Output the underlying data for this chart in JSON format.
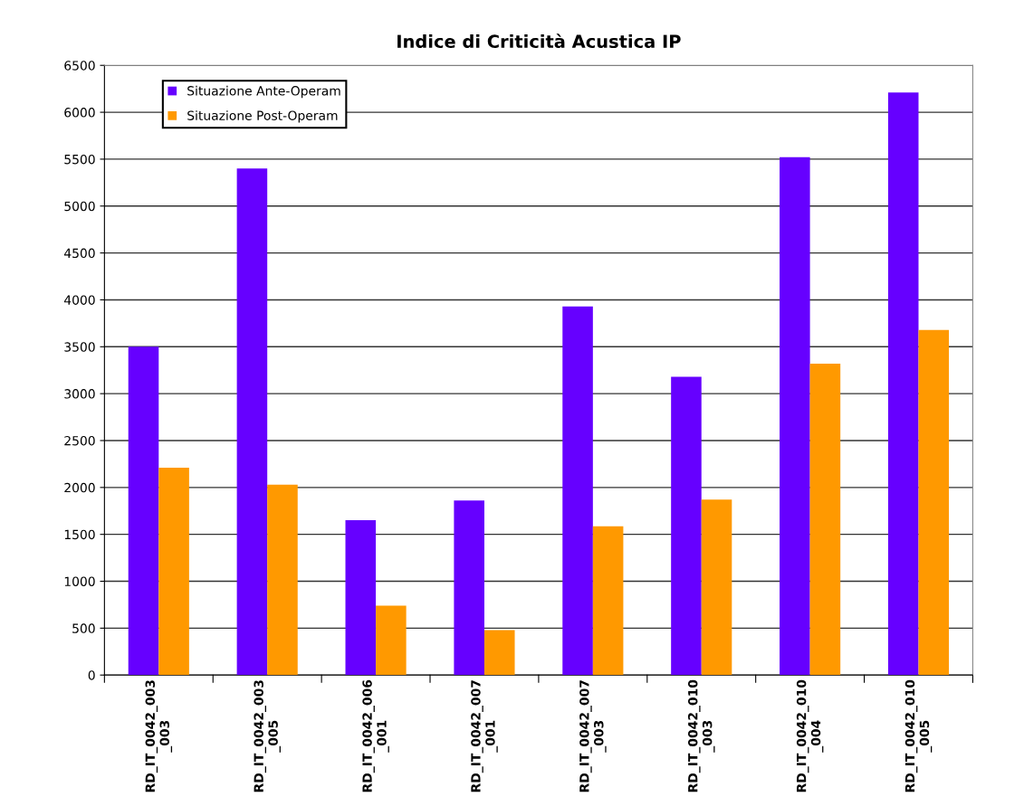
{
  "chart_data": {
    "type": "bar",
    "title": "Indice di Criticità Acustica IP",
    "categories": [
      "RD_IT_0042_003\n_003",
      "RD_IT_0042_003\n_005",
      "RD_IT_0042_006\n_001",
      "RD_IT_0042_007\n_001",
      "RD_IT_0042_007\n_003",
      "RD_IT_0042_010\n_003",
      "RD_IT_0042_010\n_004",
      "RD_IT_0042_010\n_005"
    ],
    "series": [
      {
        "name": "Situazione Ante-Operam",
        "color": "#6600ff",
        "values": [
          3500,
          5400,
          1650,
          1860,
          3930,
          3180,
          5520,
          6210
        ]
      },
      {
        "name": "Situazione Post-Operam",
        "color": "#ff9900",
        "values": [
          2210,
          2030,
          740,
          480,
          1585,
          1870,
          3320,
          3680
        ]
      }
    ],
    "ylim": [
      0,
      6500
    ],
    "yticks": [
      0,
      500,
      1000,
      1500,
      2000,
      2500,
      3000,
      3500,
      4000,
      4500,
      5000,
      5500,
      6000,
      6500
    ],
    "grid": "y",
    "legend": "top left"
  }
}
